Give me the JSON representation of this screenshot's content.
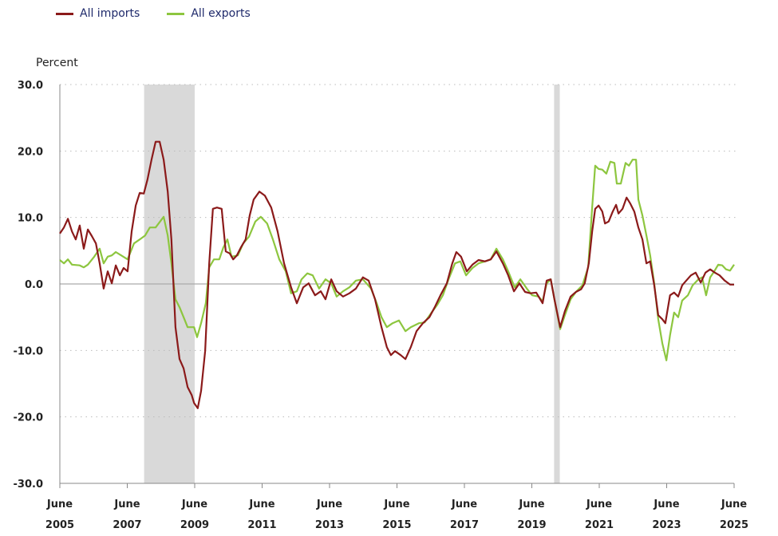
{
  "chart_data": {
    "type": "line",
    "title": "",
    "ylabel": "Percent",
    "xlabel": "",
    "ylim": [
      -30,
      30
    ],
    "xlim": [
      2005.42,
      2025.42
    ],
    "y_ticks": [
      "30.0",
      "20.0",
      "10.0",
      "0.0",
      "-10.0",
      "-20.0",
      "-30.0"
    ],
    "y_tick_values": [
      30,
      20,
      10,
      0,
      -10,
      -20,
      -30
    ],
    "x_ticks": [
      {
        "value": 2005.42,
        "month": "June",
        "year": "2005"
      },
      {
        "value": 2007.42,
        "month": "June",
        "year": "2007"
      },
      {
        "value": 2009.42,
        "month": "June",
        "year": "2009"
      },
      {
        "value": 2011.42,
        "month": "June",
        "year": "2011"
      },
      {
        "value": 2013.42,
        "month": "June",
        "year": "2013"
      },
      {
        "value": 2015.42,
        "month": "June",
        "year": "2015"
      },
      {
        "value": 2017.42,
        "month": "June",
        "year": "2017"
      },
      {
        "value": 2019.42,
        "month": "June",
        "year": "2019"
      },
      {
        "value": 2021.42,
        "month": "June",
        "year": "2021"
      },
      {
        "value": 2023.42,
        "month": "June",
        "year": "2023"
      },
      {
        "value": 2025.42,
        "month": "June",
        "year": "2025"
      }
    ],
    "grid": "horizontal dotted",
    "legend_position": "top-left",
    "shaded_periods": [
      [
        2007.92,
        2009.42
      ],
      [
        2020.08,
        2020.25
      ]
    ],
    "shade_color": "#d9d9d9",
    "series": [
      {
        "name": "All imports",
        "color": "#8b1a1a",
        "points": [
          [
            2005.42,
            7.6
          ],
          [
            2005.54,
            8.5
          ],
          [
            2005.66,
            9.8
          ],
          [
            2005.78,
            7.9
          ],
          [
            2005.89,
            6.7
          ],
          [
            2006.01,
            8.8
          ],
          [
            2006.13,
            5.3
          ],
          [
            2006.25,
            8.2
          ],
          [
            2006.37,
            7.2
          ],
          [
            2006.49,
            6.1
          ],
          [
            2006.6,
            3.1
          ],
          [
            2006.72,
            -0.7
          ],
          [
            2006.84,
            1.9
          ],
          [
            2006.96,
            0.1
          ],
          [
            2007.08,
            2.8
          ],
          [
            2007.2,
            1.3
          ],
          [
            2007.31,
            2.4
          ],
          [
            2007.43,
            1.9
          ],
          [
            2007.55,
            7.9
          ],
          [
            2007.67,
            11.8
          ],
          [
            2007.79,
            13.7
          ],
          [
            2007.91,
            13.6
          ],
          [
            2008.02,
            15.7
          ],
          [
            2008.14,
            18.7
          ],
          [
            2008.26,
            21.4
          ],
          [
            2008.38,
            21.4
          ],
          [
            2008.5,
            18.7
          ],
          [
            2008.62,
            13.9
          ],
          [
            2008.73,
            6.7
          ],
          [
            2008.85,
            -6.5
          ],
          [
            2008.97,
            -11.3
          ],
          [
            2009.09,
            -12.7
          ],
          [
            2009.21,
            -15.5
          ],
          [
            2009.33,
            -16.7
          ],
          [
            2009.4,
            -17.9
          ],
          [
            2009.51,
            -18.7
          ],
          [
            2009.61,
            -16.1
          ],
          [
            2009.73,
            -10.1
          ],
          [
            2009.85,
            3.1
          ],
          [
            2009.96,
            11.3
          ],
          [
            2010.08,
            11.5
          ],
          [
            2010.22,
            11.3
          ],
          [
            2010.34,
            4.9
          ],
          [
            2010.46,
            4.6
          ],
          [
            2010.56,
            3.7
          ],
          [
            2010.67,
            4.3
          ],
          [
            2010.79,
            5.5
          ],
          [
            2010.93,
            6.7
          ],
          [
            2011.05,
            10.3
          ],
          [
            2011.17,
            12.7
          ],
          [
            2011.34,
            13.9
          ],
          [
            2011.5,
            13.3
          ],
          [
            2011.69,
            11.5
          ],
          [
            2011.88,
            7.9
          ],
          [
            2012.07,
            3.1
          ],
          [
            2012.28,
            -0.5
          ],
          [
            2012.45,
            -2.9
          ],
          [
            2012.64,
            -0.5
          ],
          [
            2012.8,
            0.1
          ],
          [
            2012.99,
            -1.7
          ],
          [
            2013.16,
            -1.1
          ],
          [
            2013.3,
            -2.3
          ],
          [
            2013.47,
            0.7
          ],
          [
            2013.63,
            -1.1
          ],
          [
            2013.82,
            -1.9
          ],
          [
            2014.01,
            -1.4
          ],
          [
            2014.2,
            -0.7
          ],
          [
            2014.41,
            1.0
          ],
          [
            2014.58,
            0.5
          ],
          [
            2014.77,
            -2.3
          ],
          [
            2014.96,
            -6.5
          ],
          [
            2015.12,
            -9.5
          ],
          [
            2015.24,
            -10.7
          ],
          [
            2015.36,
            -10.1
          ],
          [
            2015.53,
            -10.7
          ],
          [
            2015.67,
            -11.3
          ],
          [
            2015.83,
            -9.5
          ],
          [
            2016.0,
            -7.1
          ],
          [
            2016.19,
            -5.9
          ],
          [
            2016.38,
            -5.0
          ],
          [
            2016.54,
            -3.5
          ],
          [
            2016.71,
            -1.7
          ],
          [
            2016.9,
            0.1
          ],
          [
            2017.06,
            3.1
          ],
          [
            2017.18,
            4.8
          ],
          [
            2017.32,
            4.1
          ],
          [
            2017.49,
            1.9
          ],
          [
            2017.66,
            2.9
          ],
          [
            2017.84,
            3.6
          ],
          [
            2018.03,
            3.4
          ],
          [
            2018.2,
            3.7
          ],
          [
            2018.37,
            4.9
          ],
          [
            2018.56,
            3.1
          ],
          [
            2018.72,
            1.3
          ],
          [
            2018.89,
            -1.1
          ],
          [
            2019.05,
            0.1
          ],
          [
            2019.22,
            -1.2
          ],
          [
            2019.38,
            -1.4
          ],
          [
            2019.55,
            -1.3
          ],
          [
            2019.74,
            -2.9
          ],
          [
            2019.86,
            0.5
          ],
          [
            2019.98,
            0.7
          ],
          [
            2020.09,
            -2.3
          ],
          [
            2020.26,
            -6.5
          ],
          [
            2020.4,
            -4.1
          ],
          [
            2020.57,
            -1.9
          ],
          [
            2020.73,
            -1.2
          ],
          [
            2020.88,
            -0.8
          ],
          [
            2020.99,
            0.1
          ],
          [
            2021.11,
            3.1
          ],
          [
            2021.21,
            7.9
          ],
          [
            2021.3,
            11.3
          ],
          [
            2021.4,
            11.8
          ],
          [
            2021.51,
            10.9
          ],
          [
            2021.59,
            9.1
          ],
          [
            2021.7,
            9.4
          ],
          [
            2021.82,
            10.9
          ],
          [
            2021.92,
            11.9
          ],
          [
            2021.99,
            10.6
          ],
          [
            2022.11,
            11.3
          ],
          [
            2022.23,
            13.0
          ],
          [
            2022.34,
            12.1
          ],
          [
            2022.46,
            10.9
          ],
          [
            2022.58,
            8.5
          ],
          [
            2022.7,
            6.7
          ],
          [
            2022.82,
            3.1
          ],
          [
            2022.93,
            3.4
          ],
          [
            2023.05,
            -0.2
          ],
          [
            2023.17,
            -4.7
          ],
          [
            2023.29,
            -5.3
          ],
          [
            2023.38,
            -5.9
          ],
          [
            2023.52,
            -1.7
          ],
          [
            2023.64,
            -1.3
          ],
          [
            2023.76,
            -1.9
          ],
          [
            2023.88,
            -0.2
          ],
          [
            2024.0,
            0.5
          ],
          [
            2024.14,
            1.3
          ],
          [
            2024.28,
            1.7
          ],
          [
            2024.43,
            0.2
          ],
          [
            2024.57,
            1.7
          ],
          [
            2024.71,
            2.2
          ],
          [
            2024.85,
            1.7
          ],
          [
            2024.99,
            1.3
          ],
          [
            2025.14,
            0.5
          ],
          [
            2025.3,
            -0.1
          ],
          [
            2025.42,
            -0.1
          ]
        ]
      },
      {
        "name": "All exports",
        "color": "#8dc63f",
        "points": [
          [
            2005.42,
            3.6
          ],
          [
            2005.54,
            3.1
          ],
          [
            2005.66,
            3.7
          ],
          [
            2005.78,
            2.9
          ],
          [
            2006.01,
            2.8
          ],
          [
            2006.13,
            2.5
          ],
          [
            2006.25,
            2.9
          ],
          [
            2006.44,
            4.1
          ],
          [
            2006.6,
            5.3
          ],
          [
            2006.72,
            3.1
          ],
          [
            2006.84,
            4.1
          ],
          [
            2006.96,
            4.3
          ],
          [
            2007.08,
            4.8
          ],
          [
            2007.24,
            4.3
          ],
          [
            2007.43,
            3.7
          ],
          [
            2007.62,
            6.1
          ],
          [
            2007.79,
            6.7
          ],
          [
            2007.95,
            7.3
          ],
          [
            2008.09,
            8.5
          ],
          [
            2008.26,
            8.5
          ],
          [
            2008.5,
            10.1
          ],
          [
            2008.62,
            7.3
          ],
          [
            2008.73,
            3.1
          ],
          [
            2008.85,
            -2.3
          ],
          [
            2008.97,
            -3.5
          ],
          [
            2009.09,
            -5.0
          ],
          [
            2009.21,
            -6.5
          ],
          [
            2009.4,
            -6.5
          ],
          [
            2009.49,
            -8.0
          ],
          [
            2009.61,
            -5.9
          ],
          [
            2009.75,
            -2.9
          ],
          [
            2009.85,
            2.5
          ],
          [
            2009.99,
            3.7
          ],
          [
            2010.15,
            3.7
          ],
          [
            2010.27,
            5.5
          ],
          [
            2010.39,
            6.7
          ],
          [
            2010.51,
            4.1
          ],
          [
            2010.7,
            4.3
          ],
          [
            2010.86,
            6.1
          ],
          [
            2011.03,
            7.1
          ],
          [
            2011.22,
            9.4
          ],
          [
            2011.38,
            10.1
          ],
          [
            2011.57,
            9.1
          ],
          [
            2011.74,
            6.7
          ],
          [
            2011.93,
            3.7
          ],
          [
            2012.12,
            1.9
          ],
          [
            2012.28,
            -1.4
          ],
          [
            2012.45,
            -1.1
          ],
          [
            2012.59,
            0.7
          ],
          [
            2012.76,
            1.6
          ],
          [
            2012.92,
            1.3
          ],
          [
            2013.11,
            -0.7
          ],
          [
            2013.3,
            0.7
          ],
          [
            2013.47,
            0.1
          ],
          [
            2013.63,
            -1.9
          ],
          [
            2013.82,
            -1.1
          ],
          [
            2014.01,
            -0.5
          ],
          [
            2014.2,
            0.5
          ],
          [
            2014.41,
            0.7
          ],
          [
            2014.65,
            -0.7
          ],
          [
            2014.82,
            -2.9
          ],
          [
            2014.96,
            -5.0
          ],
          [
            2015.12,
            -6.5
          ],
          [
            2015.29,
            -5.9
          ],
          [
            2015.48,
            -5.5
          ],
          [
            2015.67,
            -7.1
          ],
          [
            2015.83,
            -6.5
          ],
          [
            2016.07,
            -5.9
          ],
          [
            2016.24,
            -5.8
          ],
          [
            2016.43,
            -4.4
          ],
          [
            2016.62,
            -3.1
          ],
          [
            2016.78,
            -1.7
          ],
          [
            2016.95,
            0.7
          ],
          [
            2017.14,
            3.1
          ],
          [
            2017.3,
            3.4
          ],
          [
            2017.47,
            1.3
          ],
          [
            2017.66,
            2.4
          ],
          [
            2017.84,
            3.1
          ],
          [
            2018.03,
            3.4
          ],
          [
            2018.2,
            3.7
          ],
          [
            2018.37,
            5.3
          ],
          [
            2018.56,
            3.7
          ],
          [
            2018.72,
            1.9
          ],
          [
            2018.91,
            -0.5
          ],
          [
            2019.08,
            0.7
          ],
          [
            2019.27,
            -0.7
          ],
          [
            2019.43,
            -1.7
          ],
          [
            2019.62,
            -1.9
          ],
          [
            2019.74,
            -2.6
          ],
          [
            2019.86,
            0.1
          ],
          [
            2019.98,
            0.7
          ],
          [
            2020.09,
            -2.3
          ],
          [
            2020.26,
            -6.8
          ],
          [
            2020.4,
            -4.7
          ],
          [
            2020.57,
            -2.3
          ],
          [
            2020.73,
            -1.2
          ],
          [
            2020.92,
            -0.2
          ],
          [
            2021.09,
            2.5
          ],
          [
            2021.21,
            11.5
          ],
          [
            2021.3,
            17.8
          ],
          [
            2021.4,
            17.3
          ],
          [
            2021.51,
            17.2
          ],
          [
            2021.63,
            16.6
          ],
          [
            2021.75,
            18.4
          ],
          [
            2021.87,
            18.2
          ],
          [
            2021.94,
            15.1
          ],
          [
            2022.06,
            15.1
          ],
          [
            2022.2,
            18.2
          ],
          [
            2022.3,
            17.8
          ],
          [
            2022.41,
            18.7
          ],
          [
            2022.51,
            18.7
          ],
          [
            2022.58,
            12.7
          ],
          [
            2022.7,
            10.3
          ],
          [
            2022.82,
            7.3
          ],
          [
            2022.93,
            4.3
          ],
          [
            2023.05,
            0.1
          ],
          [
            2023.17,
            -5.3
          ],
          [
            2023.29,
            -8.9
          ],
          [
            2023.41,
            -11.5
          ],
          [
            2023.52,
            -7.7
          ],
          [
            2023.64,
            -4.3
          ],
          [
            2023.76,
            -5.0
          ],
          [
            2023.88,
            -2.5
          ],
          [
            2024.05,
            -1.7
          ],
          [
            2024.19,
            -0.2
          ],
          [
            2024.36,
            0.7
          ],
          [
            2024.47,
            1.0
          ],
          [
            2024.59,
            -1.7
          ],
          [
            2024.71,
            1.0
          ],
          [
            2024.83,
            1.9
          ],
          [
            2024.95,
            2.9
          ],
          [
            2025.07,
            2.8
          ],
          [
            2025.18,
            2.2
          ],
          [
            2025.3,
            2.0
          ],
          [
            2025.42,
            2.9
          ]
        ]
      }
    ]
  }
}
